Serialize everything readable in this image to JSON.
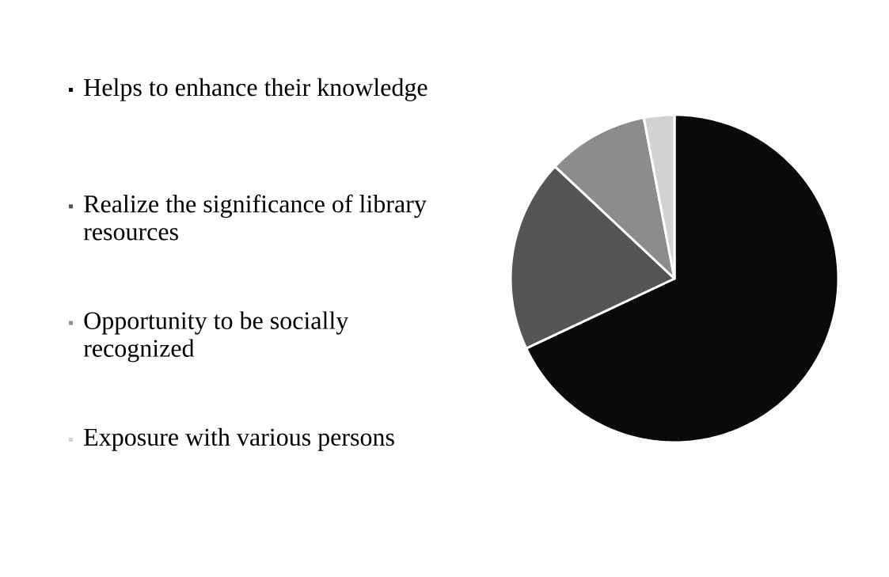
{
  "chart_data": {
    "type": "pie",
    "categories": [
      "Helps to enhance their knowledge",
      "Realize the significance of library resources",
      "Opportunity to be socially recognized",
      "Exposure with various persons"
    ],
    "values": [
      68,
      19,
      10,
      3
    ],
    "colors": [
      "#0a0a0a",
      "#555555",
      "#8c8c8c",
      "#d2d2d2"
    ],
    "legend": "left"
  }
}
